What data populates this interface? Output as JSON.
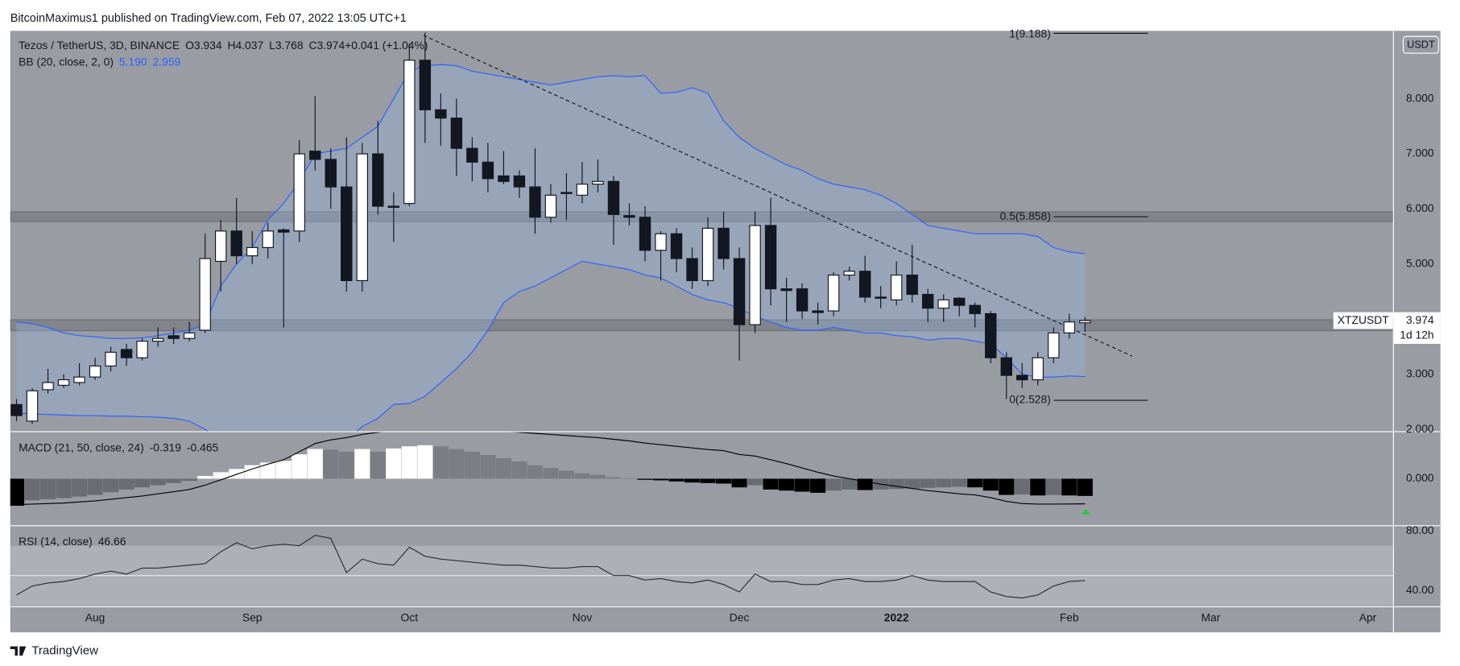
{
  "header": "BitcoinMaximus1 published on TradingView.com, Feb 07, 2022 13:05 UTC+1",
  "footer": "TradingView",
  "chart_data": [
    {
      "type": "candlestick",
      "title": "Tezos / TetherUS, 3D, BINANCE",
      "legend_values": [
        {
          "label": "O",
          "value": "3.934"
        },
        {
          "label": "H",
          "value": "4.037"
        },
        {
          "label": "L",
          "value": "3.768"
        },
        {
          "label": "C",
          "value": "3.974"
        },
        {
          "label": "",
          "value": "+0.041 (+1.04%)"
        }
      ],
      "currency": "USDT",
      "symbol": "XTZUSDT",
      "countdown": "1d 12h",
      "last": {
        "value": 3.974,
        "label": "3.974"
      },
      "colors": {
        "up": "#ffffff",
        "down": "#131722",
        "wick": "#131722"
      },
      "open": [
        2.45,
        2.15,
        2.72,
        2.8,
        2.85,
        2.95,
        3.15,
        3.45,
        3.3,
        3.6,
        3.7,
        3.65,
        3.8,
        5.05,
        5.6,
        5.15,
        5.3,
        5.62,
        5.6,
        7.05,
        6.9,
        6.4,
        4.7,
        7.0,
        6.05,
        6.1,
        8.7,
        7.8,
        7.65,
        7.1,
        6.85,
        6.6,
        6.6,
        6.4,
        5.85,
        6.3,
        6.25,
        6.45,
        6.5,
        5.88,
        5.85,
        5.25,
        5.55,
        5.1,
        4.7,
        5.65,
        5.1,
        3.9,
        5.7,
        4.55,
        4.55,
        4.15,
        4.15,
        4.8,
        4.87,
        4.4,
        4.35,
        4.8,
        4.45,
        4.2,
        4.38,
        4.25,
        4.1,
        3.3,
        2.98,
        2.9,
        3.3,
        3.75,
        3.934
      ],
      "high": [
        2.55,
        2.75,
        3.1,
        3.0,
        3.2,
        3.3,
        3.5,
        3.55,
        3.65,
        3.85,
        3.85,
        3.95,
        5.55,
        5.8,
        6.2,
        5.6,
        5.75,
        5.65,
        7.25,
        8.05,
        7.1,
        7.3,
        7.2,
        7.6,
        6.3,
        9.0,
        9.2,
        8.1,
        8.0,
        7.3,
        7.2,
        7.05,
        6.7,
        7.1,
        6.45,
        6.65,
        6.85,
        6.9,
        6.6,
        6.1,
        6.05,
        5.6,
        5.65,
        5.3,
        5.85,
        5.95,
        5.3,
        5.95,
        6.2,
        4.75,
        4.65,
        4.3,
        4.85,
        4.95,
        5.15,
        4.6,
        5.05,
        5.35,
        4.55,
        4.45,
        4.4,
        4.3,
        4.15,
        3.4,
        3.2,
        3.4,
        3.85,
        4.1,
        4.037
      ],
      "low": [
        2.15,
        2.1,
        2.65,
        2.75,
        2.8,
        2.9,
        3.05,
        3.15,
        3.25,
        3.5,
        3.55,
        3.6,
        3.75,
        4.5,
        5.0,
        5.0,
        5.1,
        3.85,
        5.4,
        6.7,
        6.0,
        4.5,
        4.5,
        5.9,
        5.4,
        6.05,
        7.2,
        7.15,
        6.6,
        6.5,
        6.3,
        6.45,
        6.2,
        5.55,
        5.75,
        5.8,
        6.1,
        6.3,
        5.35,
        5.7,
        5.05,
        4.7,
        4.85,
        4.55,
        4.6,
        4.9,
        3.25,
        3.75,
        4.25,
        3.95,
        4.0,
        3.9,
        4.05,
        4.7,
        4.3,
        4.2,
        4.25,
        4.3,
        3.95,
        3.95,
        4.05,
        3.85,
        3.2,
        2.55,
        2.75,
        2.8,
        3.2,
        3.65,
        3.768
      ],
      "close": [
        2.25,
        2.7,
        2.85,
        2.9,
        2.95,
        3.15,
        3.4,
        3.3,
        3.6,
        3.65,
        3.65,
        3.75,
        5.1,
        5.6,
        5.15,
        5.3,
        5.6,
        5.58,
        7.0,
        6.9,
        6.4,
        4.7,
        7.0,
        6.05,
        6.03,
        8.7,
        7.8,
        7.65,
        7.1,
        6.85,
        6.55,
        6.5,
        6.4,
        5.85,
        6.25,
        6.28,
        6.45,
        6.5,
        5.9,
        5.85,
        5.25,
        5.55,
        5.1,
        4.7,
        5.65,
        5.1,
        3.9,
        5.7,
        4.55,
        4.52,
        4.15,
        4.12,
        4.8,
        4.87,
        4.4,
        4.38,
        4.8,
        4.45,
        4.2,
        4.35,
        4.25,
        4.1,
        3.3,
        2.98,
        2.9,
        3.3,
        3.75,
        3.95,
        3.974
      ],
      "bb": {
        "name": "BB (20, close, 2, 0)",
        "color": "#2962ff",
        "upper": {
          "label": "5.190",
          "values": [
            3.95,
            3.92,
            3.85,
            3.75,
            3.7,
            3.68,
            3.65,
            3.65,
            3.66,
            3.7,
            3.75,
            3.8,
            3.9,
            4.6,
            5.0,
            5.3,
            5.8,
            6.1,
            6.5,
            7.0,
            7.05,
            7.1,
            7.3,
            7.5,
            8.0,
            8.5,
            8.6,
            8.62,
            8.6,
            8.5,
            8.45,
            8.4,
            8.35,
            8.3,
            8.25,
            8.3,
            8.35,
            8.4,
            8.42,
            8.4,
            8.42,
            8.1,
            8.12,
            8.2,
            8.1,
            7.6,
            7.3,
            7.1,
            6.95,
            6.8,
            6.7,
            6.55,
            6.45,
            6.4,
            6.35,
            6.25,
            6.1,
            5.9,
            5.7,
            5.65,
            5.6,
            5.55,
            5.55,
            5.55,
            5.55,
            5.5,
            5.3,
            5.22,
            5.19
          ]
        },
        "lower": {
          "label": "2.959",
          "values": [
            2.3,
            2.28,
            2.27,
            2.26,
            2.25,
            2.25,
            2.24,
            2.24,
            2.23,
            2.22,
            2.2,
            2.15,
            2.0,
            1.8,
            1.7,
            1.6,
            1.5,
            1.4,
            1.3,
            1.4,
            1.6,
            1.8,
            2.05,
            2.2,
            2.45,
            2.47,
            2.6,
            2.85,
            3.1,
            3.4,
            3.8,
            4.3,
            4.5,
            4.6,
            4.75,
            4.9,
            5.05,
            5.0,
            4.95,
            4.9,
            4.8,
            4.75,
            4.6,
            4.45,
            4.35,
            4.3,
            4.2,
            4.05,
            3.95,
            3.85,
            3.8,
            3.8,
            3.85,
            3.8,
            3.75,
            3.75,
            3.7,
            3.68,
            3.62,
            3.65,
            3.65,
            3.6,
            3.55,
            3.3,
            3.0,
            2.95,
            2.95,
            2.97,
            2.959
          ]
        }
      },
      "zones": [
        [
          5.77,
          5.95
        ],
        [
          3.79,
          3.99
        ]
      ],
      "trendline": {
        "x": [
          25.9,
          71.0
        ],
        "y": [
          9.15,
          3.33
        ]
      },
      "fib": {
        "x": [
          66,
          72
        ],
        "levels": [
          {
            "value": 9.188,
            "label": "1(9.188)"
          },
          {
            "value": 5.858,
            "label": "0.5(5.858)"
          },
          {
            "value": 2.528,
            "label": "0(2.528)"
          }
        ]
      },
      "ylim": [
        1.966,
        9.233
      ],
      "yticks": [
        {
          "value": 2,
          "label": "2.000"
        },
        {
          "value": 3,
          "label": "3.000"
        },
        {
          "value": 4,
          "label": "4.000"
        },
        {
          "value": 5,
          "label": "5.000"
        },
        {
          "value": 6,
          "label": "6.000"
        },
        {
          "value": 7,
          "label": "7.000"
        },
        {
          "value": 8,
          "label": "8.000"
        }
      ],
      "xlim": [
        -0.4,
        87.6
      ],
      "xticks": [
        {
          "value": 5,
          "label": "Aug"
        },
        {
          "value": 15,
          "label": "Sep"
        },
        {
          "value": 25,
          "label": "Oct"
        },
        {
          "value": 36,
          "label": "Nov"
        },
        {
          "value": 46,
          "label": "Dec"
        },
        {
          "value": 56,
          "label": "2022",
          "bold": true
        },
        {
          "value": 67,
          "label": "Feb"
        },
        {
          "value": 76,
          "label": "Mar"
        },
        {
          "value": 86,
          "label": "Apr"
        }
      ]
    },
    {
      "type": "macd",
      "title": "MACD (21, 50, close, 24)",
      "legend_values": [
        "-0.319",
        "-0.465"
      ],
      "histogram": [
        -0.5,
        -0.4,
        -0.38,
        -0.36,
        -0.33,
        -0.3,
        -0.25,
        -0.2,
        -0.16,
        -0.12,
        -0.08,
        -0.04,
        0.05,
        0.12,
        0.18,
        0.25,
        0.3,
        0.33,
        0.45,
        0.55,
        0.54,
        0.5,
        0.55,
        0.5,
        0.56,
        0.6,
        0.62,
        0.6,
        0.55,
        0.5,
        0.44,
        0.38,
        0.32,
        0.25,
        0.2,
        0.15,
        0.1,
        0.07,
        0.03,
        0.01,
        -0.02,
        -0.03,
        -0.05,
        -0.07,
        -0.08,
        -0.09,
        -0.16,
        -0.12,
        -0.2,
        -0.22,
        -0.24,
        -0.26,
        -0.22,
        -0.2,
        -0.21,
        -0.2,
        -0.19,
        -0.18,
        -0.17,
        -0.16,
        -0.15,
        -0.16,
        -0.22,
        -0.3,
        -0.29,
        -0.31,
        -0.3,
        -0.31,
        -0.319
      ],
      "macd": [
        -0.48,
        -0.47,
        -0.46,
        -0.45,
        -0.43,
        -0.41,
        -0.38,
        -0.35,
        -0.32,
        -0.28,
        -0.24,
        -0.2,
        -0.12,
        -0.02,
        0.08,
        0.18,
        0.27,
        0.35,
        0.5,
        0.65,
        0.72,
        0.76,
        0.82,
        0.86,
        0.9,
        0.98,
        1.02,
        1.0,
        0.97,
        0.93,
        0.9,
        0.88,
        0.86,
        0.84,
        0.82,
        0.8,
        0.78,
        0.76,
        0.73,
        0.7,
        0.66,
        0.63,
        0.6,
        0.57,
        0.54,
        0.52,
        0.45,
        0.42,
        0.35,
        0.28,
        0.2,
        0.12,
        0.05,
        0.0,
        -0.05,
        -0.1,
        -0.14,
        -0.18,
        -0.22,
        -0.25,
        -0.28,
        -0.3,
        -0.35,
        -0.42,
        -0.46,
        -0.47,
        -0.47,
        -0.468,
        -0.465
      ],
      "colors": {
        "up_rising": "#ffffff",
        "up_falling": "#7b7d84",
        "down_falling": "#000000",
        "down_rising": "#6a6c73",
        "line": "#000000"
      },
      "ylim": [
        -0.845,
        0.862
      ],
      "yticks": [
        {
          "value": 0,
          "label": "0.000"
        }
      ]
    },
    {
      "type": "line",
      "title": "RSI (14, close)",
      "legend_values": [
        "46.66"
      ],
      "color": "#2a2e39",
      "values": [
        37,
        43,
        45,
        46,
        48,
        51,
        53,
        51,
        55,
        55,
        56,
        57,
        58,
        66,
        72,
        68,
        70,
        71,
        70,
        77,
        75,
        52,
        61,
        58,
        57,
        69,
        63,
        61,
        60,
        59,
        58,
        57,
        57,
        56,
        55,
        55,
        56,
        56,
        50,
        50,
        47,
        48,
        46,
        45,
        47,
        44,
        39,
        51,
        46,
        46,
        44,
        44,
        47,
        48,
        46,
        46,
        47,
        50,
        47,
        46,
        46,
        46,
        39,
        36,
        35,
        37,
        43,
        46,
        46.66
      ],
      "bands": [
        70,
        30
      ],
      "midline": 50,
      "ylim": [
        29.4,
        83.1
      ],
      "yticks": [
        {
          "value": 80,
          "label": "80.00"
        },
        {
          "value": 40,
          "label": "40.00"
        }
      ]
    }
  ]
}
